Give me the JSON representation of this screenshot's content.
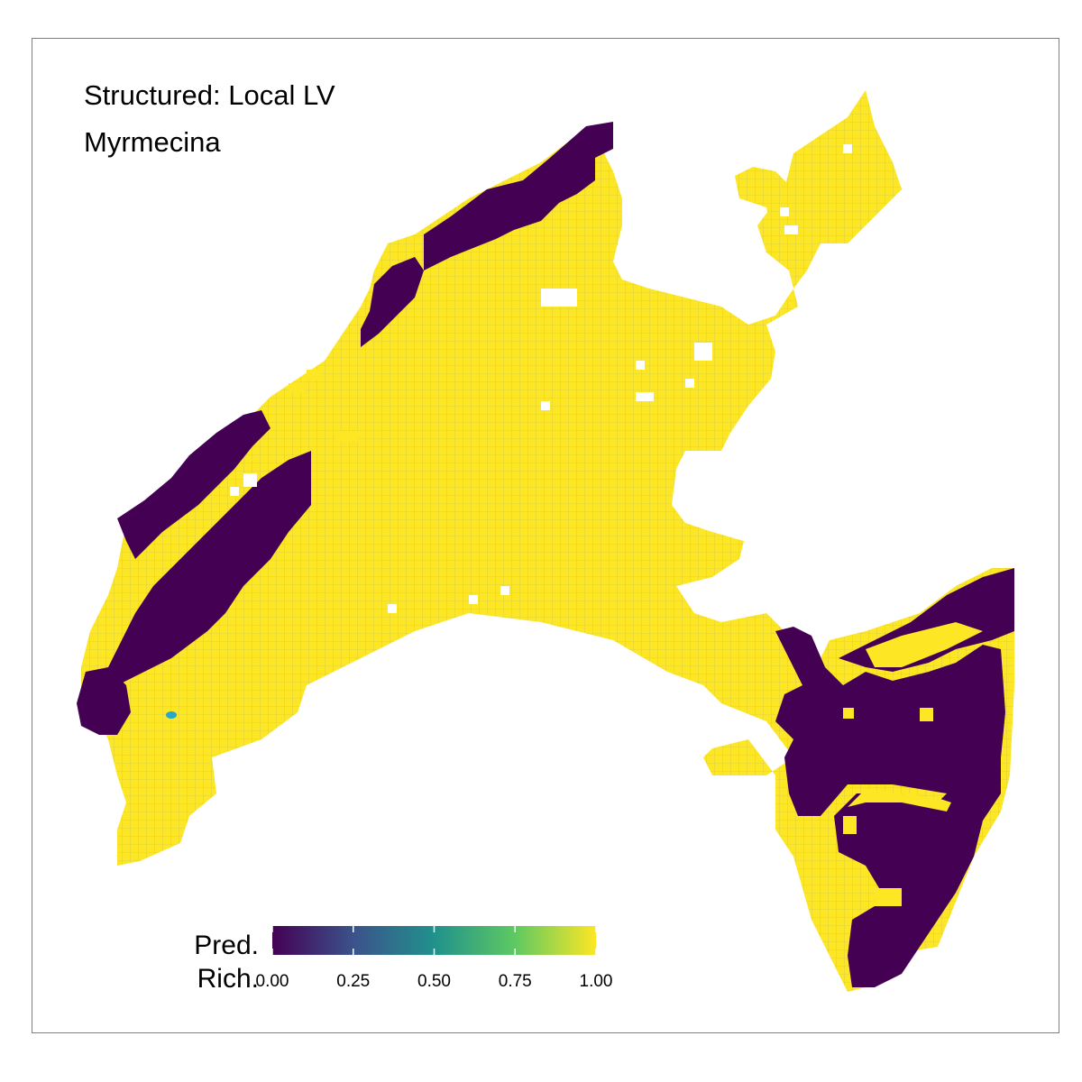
{
  "title": {
    "line1": "Structured: Local LV",
    "line2": "Myrmecina"
  },
  "legend": {
    "title_line1": "Pred.",
    "title_line2": "Rich.",
    "ticks": [
      "0.00",
      "0.25",
      "0.50",
      "0.75",
      "1.00"
    ],
    "tick_values": [
      0,
      0.25,
      0.5,
      0.75,
      1
    ],
    "range": [
      0,
      1
    ],
    "colors": [
      "#440154",
      "#3b528b",
      "#21918c",
      "#5ec962",
      "#fde725"
    ]
  },
  "map": {
    "high_color": "#fde725",
    "low_color": "#440154",
    "point_color": "#2aa6c9",
    "grid_line_color": "#9a9a7a"
  }
}
